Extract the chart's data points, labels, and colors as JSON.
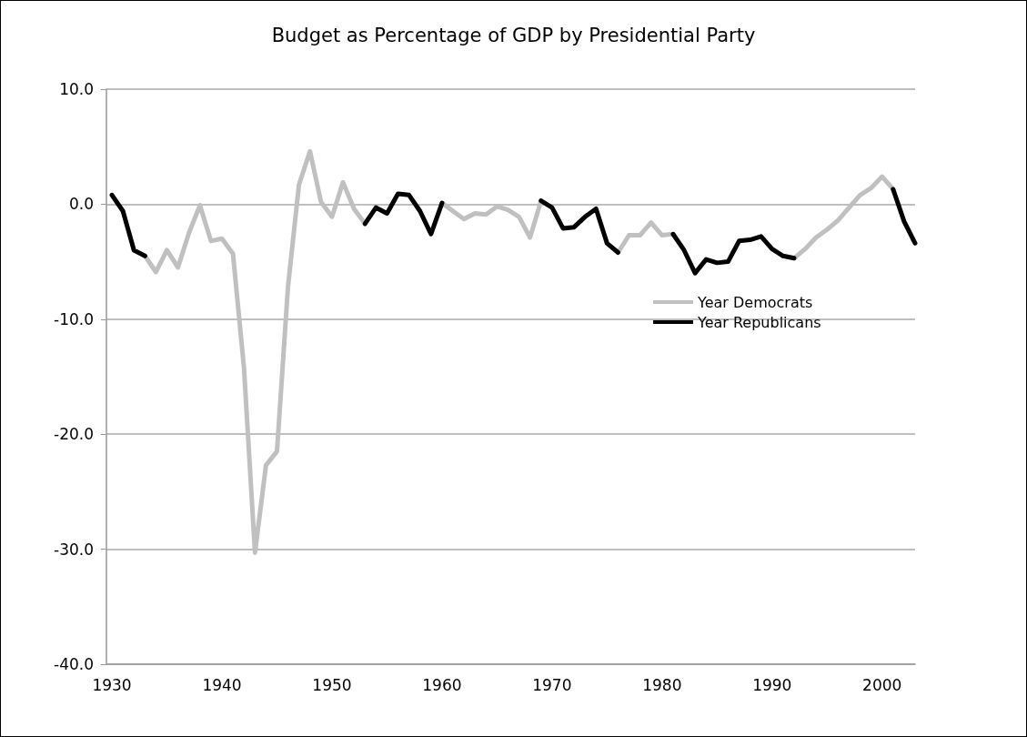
{
  "chart_data": {
    "type": "line",
    "title": "Budget as Percentage of GDP by Presidential Party",
    "x": [
      1930,
      1931,
      1932,
      1933,
      1934,
      1935,
      1936,
      1937,
      1938,
      1939,
      1940,
      1941,
      1942,
      1943,
      1944,
      1945,
      1946,
      1947,
      1948,
      1949,
      1950,
      1951,
      1952,
      1953,
      1954,
      1955,
      1956,
      1957,
      1958,
      1959,
      1960,
      1961,
      1962,
      1963,
      1964,
      1965,
      1966,
      1967,
      1968,
      1969,
      1970,
      1971,
      1972,
      1973,
      1974,
      1975,
      1976,
      1977,
      1978,
      1979,
      1980,
      1981,
      1982,
      1983,
      1984,
      1985,
      1986,
      1987,
      1988,
      1989,
      1990,
      1991,
      1992,
      1993,
      1994,
      1995,
      1996,
      1997,
      1998,
      1999,
      2000,
      2001,
      2002,
      2003
    ],
    "series": [
      {
        "name": "Year Democrats",
        "color": "#c0c0c0",
        "values": [
          null,
          null,
          null,
          -4.5,
          -5.9,
          -4.0,
          -5.5,
          -2.5,
          -0.1,
          -3.2,
          -3.0,
          -4.3,
          -14.2,
          -30.3,
          -22.7,
          -21.5,
          -7.2,
          1.7,
          4.6,
          0.2,
          -1.1,
          1.9,
          -0.4,
          -1.7,
          null,
          null,
          null,
          null,
          null,
          null,
          0.1,
          -0.6,
          -1.3,
          -0.8,
          -0.9,
          -0.2,
          -0.5,
          -1.1,
          -2.9,
          0.3,
          null,
          null,
          null,
          null,
          null,
          null,
          -4.2,
          -2.7,
          -2.7,
          -1.6,
          -2.7,
          -2.6,
          null,
          null,
          null,
          null,
          null,
          null,
          null,
          null,
          null,
          null,
          -4.7,
          -3.9,
          -2.9,
          -2.2,
          -1.4,
          -0.3,
          0.8,
          1.4,
          2.4,
          1.3,
          null,
          null
        ]
      },
      {
        "name": "Year Republicans",
        "color": "#000000",
        "values": [
          0.8,
          -0.6,
          -4.0,
          -4.5,
          null,
          null,
          null,
          null,
          null,
          null,
          null,
          null,
          null,
          null,
          null,
          null,
          null,
          null,
          null,
          null,
          null,
          null,
          null,
          -1.7,
          -0.3,
          -0.8,
          0.9,
          0.8,
          -0.6,
          -2.6,
          0.1,
          null,
          null,
          null,
          null,
          null,
          null,
          null,
          null,
          0.3,
          -0.3,
          -2.1,
          -2.0,
          -1.1,
          -0.4,
          -3.4,
          -4.2,
          null,
          null,
          null,
          null,
          -2.6,
          -4.0,
          -6.0,
          -4.8,
          -5.1,
          -5.0,
          -3.2,
          -3.1,
          -2.8,
          -3.9,
          -4.5,
          -4.7,
          null,
          null,
          null,
          null,
          null,
          null,
          null,
          null,
          1.3,
          -1.5,
          -3.4
        ]
      }
    ],
    "xlim": [
      1929.5,
      2003
    ],
    "xticks": [
      1930,
      1940,
      1950,
      1960,
      1970,
      1980,
      1990,
      2000
    ],
    "ylim": [
      -40,
      10
    ],
    "yticks": [
      {
        "value": -40,
        "label": "-40.0"
      },
      {
        "value": -30,
        "label": "-30.0"
      },
      {
        "value": -20,
        "label": "-20.0"
      },
      {
        "value": -10,
        "label": "-10.0"
      },
      {
        "value": 0,
        "label": "0.0"
      },
      {
        "value": 10,
        "label": "10.0"
      }
    ],
    "grid": "y",
    "legend": "right",
    "marker": "none",
    "line_style": "solid"
  }
}
